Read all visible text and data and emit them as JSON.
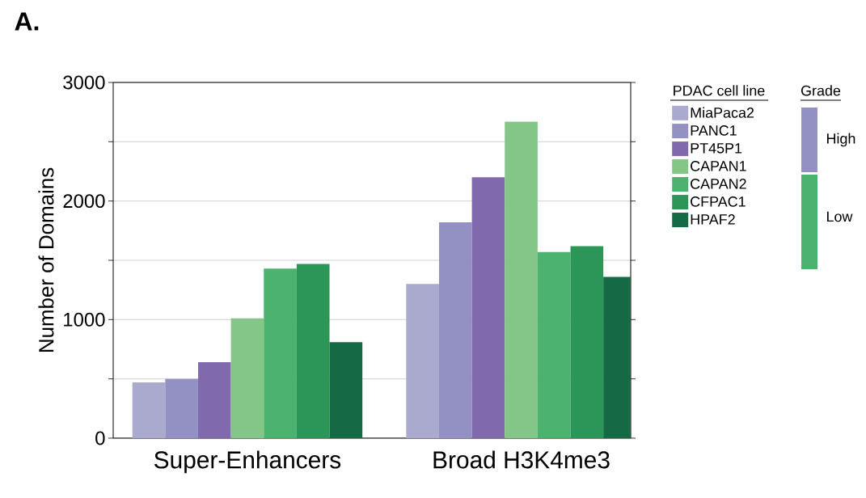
{
  "chart_data": {
    "type": "bar",
    "ylabel": "Number of Domains",
    "legend_title": "PDAC cell line",
    "categories": [
      "Super-Enhancers",
      "Broad H3K4me3"
    ],
    "series": [
      {
        "name": "MiaPaca2",
        "color": "#aaaacf",
        "values": [
          470,
          1300
        ]
      },
      {
        "name": "PANC1",
        "color": "#9391c4",
        "values": [
          500,
          1820
        ]
      },
      {
        "name": "PT45P1",
        "color": "#8069ad",
        "values": [
          640,
          2200
        ]
      },
      {
        "name": "CAPAN1",
        "color": "#83c688",
        "values": [
          1010,
          2670
        ]
      },
      {
        "name": "CAPAN2",
        "color": "#4bb36f",
        "values": [
          1430,
          1570
        ]
      },
      {
        "name": "CFPAC1",
        "color": "#2c9659",
        "values": [
          1470,
          1620
        ]
      },
      {
        "name": "HPAF2",
        "color": "#166a43",
        "values": [
          810,
          1360
        ]
      }
    ],
    "ylim": [
      0,
      3000
    ],
    "yticks": [
      0,
      {
        "value": 500,
        "label": null
      },
      1000,
      {
        "value": 1500,
        "label": null
      },
      2000,
      {
        "value": 2500,
        "label": null
      },
      3000
    ],
    "grid": "y",
    "legend": "right",
    "annotations": [
      "A.",
      "Grade",
      "High",
      "Low"
    ]
  }
}
